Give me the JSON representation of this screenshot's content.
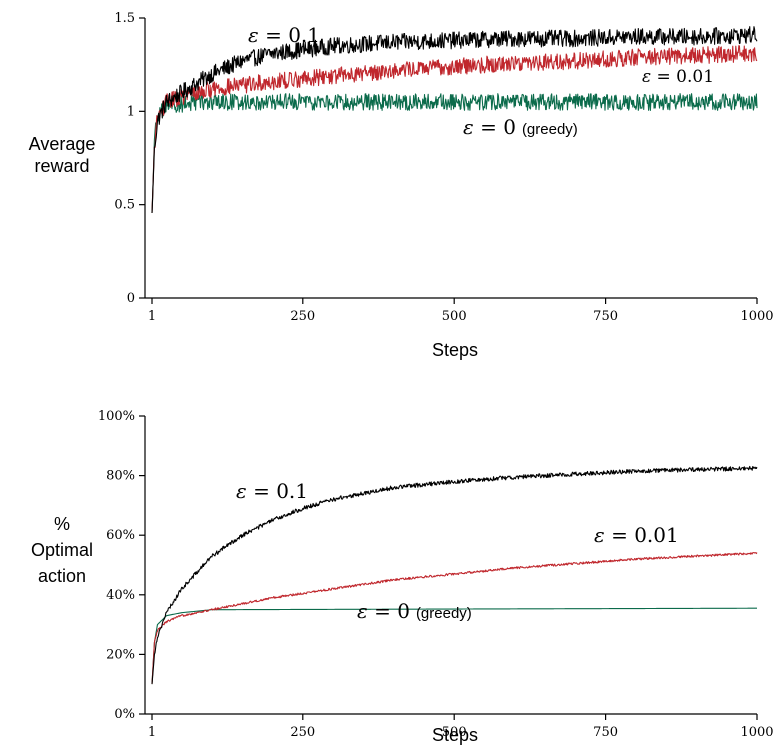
{
  "chart_data": [
    {
      "type": "line",
      "xlabel": "Steps",
      "ylabel_lines": [
        "Average",
        "reward"
      ],
      "xlim": [
        1,
        1000
      ],
      "ylim": [
        0,
        1.5
      ],
      "x_ticks": [
        1,
        250,
        500,
        750,
        1000
      ],
      "x_tick_labels": [
        "1",
        "250",
        "500",
        "750",
        "1000"
      ],
      "y_ticks": [
        0,
        0.5,
        1,
        1.5
      ],
      "y_tick_labels": [
        "0",
        "0.5",
        "1",
        "1.5"
      ],
      "grid": false,
      "series": [
        {
          "name": "ε = 0.1",
          "label_eps": "ε",
          "label_value": " = 0.1",
          "label_suffix": "",
          "color": "#000000",
          "noise": 0.045,
          "x": [
            1,
            5,
            10,
            25,
            50,
            100,
            150,
            200,
            250,
            300,
            400,
            500,
            600,
            700,
            800,
            900,
            1000
          ],
          "y": [
            0.45,
            0.8,
            0.95,
            1.05,
            1.1,
            1.2,
            1.27,
            1.31,
            1.33,
            1.35,
            1.37,
            1.38,
            1.39,
            1.39,
            1.4,
            1.4,
            1.41
          ]
        },
        {
          "name": "ε = 0.01",
          "label_eps": "ε",
          "label_value": " = 0.01",
          "label_suffix": "",
          "color": "#c0272d",
          "noise": 0.045,
          "x": [
            1,
            5,
            10,
            25,
            50,
            100,
            200,
            300,
            400,
            500,
            600,
            700,
            800,
            900,
            1000
          ],
          "y": [
            0.45,
            0.82,
            0.97,
            1.05,
            1.08,
            1.12,
            1.16,
            1.19,
            1.22,
            1.24,
            1.26,
            1.27,
            1.29,
            1.3,
            1.31
          ]
        },
        {
          "name": "ε = 0 (greedy)",
          "label_eps": "ε",
          "label_value": " = 0",
          "label_suffix": "(greedy)",
          "color": "#0b6b4b",
          "noise": 0.045,
          "x": [
            1,
            5,
            10,
            25,
            50,
            100,
            1000
          ],
          "y": [
            0.45,
            0.85,
            0.98,
            1.03,
            1.04,
            1.05,
            1.05
          ]
        }
      ]
    },
    {
      "type": "line",
      "xlabel": "Steps",
      "ylabel_lines": [
        "%",
        "Optimal",
        "action"
      ],
      "xlim": [
        1,
        1000
      ],
      "ylim": [
        0,
        100
      ],
      "x_ticks": [
        1,
        250,
        500,
        750,
        1000
      ],
      "x_tick_labels": [
        "1",
        "250",
        "500",
        "750",
        "1000"
      ],
      "y_ticks": [
        0,
        20,
        40,
        60,
        80,
        100
      ],
      "y_tick_labels": [
        "0%",
        "20%",
        "40%",
        "60%",
        "80%",
        "100%"
      ],
      "grid": false,
      "series": [
        {
          "name": "ε = 0.1",
          "label_eps": "ε",
          "label_value": " = 0.1",
          "label_suffix": "",
          "color": "#000000",
          "noise": 0.7,
          "x": [
            1,
            5,
            10,
            25,
            50,
            100,
            150,
            200,
            250,
            300,
            400,
            500,
            600,
            700,
            800,
            900,
            1000
          ],
          "y": [
            10,
            20,
            26,
            34,
            42,
            53,
            60,
            65,
            69,
            72,
            76,
            78,
            79.5,
            80.5,
            81.5,
            82,
            82.5
          ]
        },
        {
          "name": "ε = 0.01",
          "label_eps": "ε",
          "label_value": " = 0.01",
          "label_suffix": "",
          "color": "#c0272d",
          "noise": 0.35,
          "x": [
            1,
            5,
            10,
            25,
            50,
            100,
            200,
            300,
            400,
            500,
            600,
            700,
            800,
            900,
            1000
          ],
          "y": [
            10,
            24,
            28,
            31,
            33,
            35,
            39,
            42,
            45,
            47,
            49,
            50.5,
            52,
            53,
            54
          ]
        },
        {
          "name": "ε = 0 (greedy)",
          "label_eps": "ε",
          "label_value": " = 0",
          "label_suffix": "(greedy)",
          "color": "#0b6b4b",
          "noise": 0,
          "x": [
            1,
            5,
            10,
            25,
            50,
            100,
            1000
          ],
          "y": [
            10,
            24,
            30,
            33,
            34,
            35,
            35.5
          ]
        }
      ]
    }
  ]
}
